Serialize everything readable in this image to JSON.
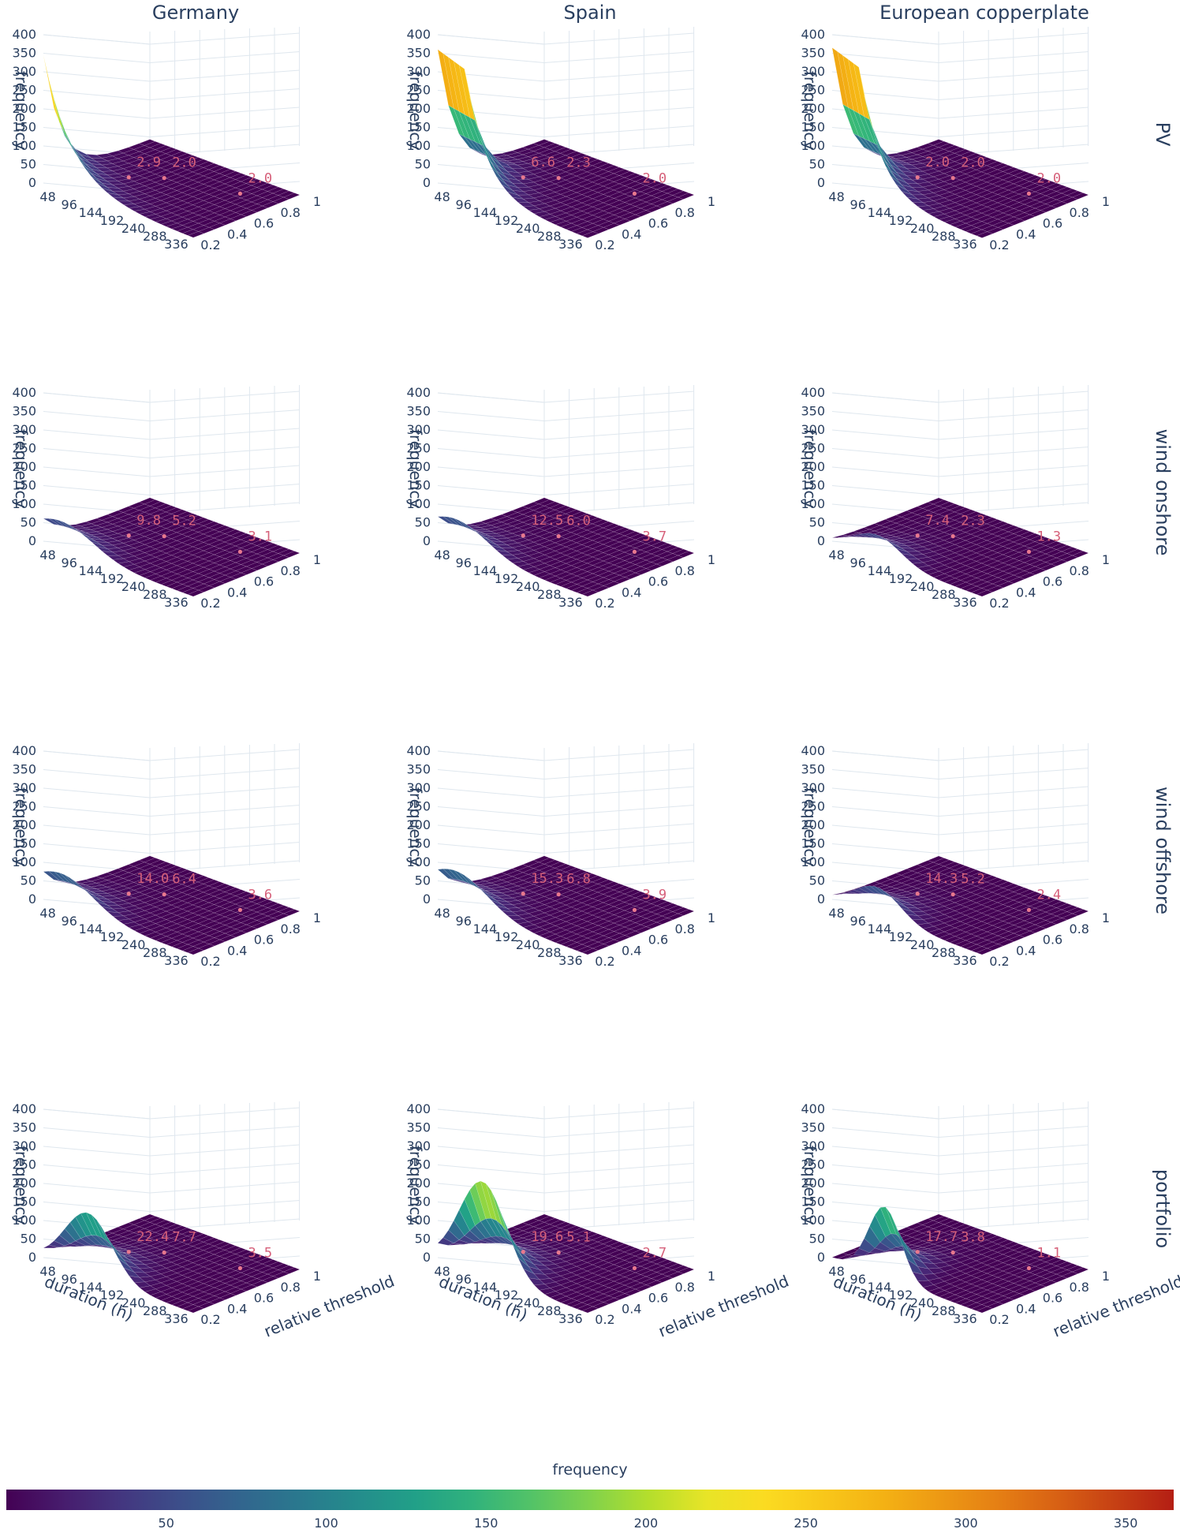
{
  "chart_data": {
    "type": "surface",
    "columns": [
      "Germany",
      "Spain",
      "European copperplate"
    ],
    "rows": [
      "PV",
      "wind onshore",
      "wind offshore",
      "portfolio"
    ],
    "x_axis": {
      "label": "duration (h)",
      "ticks": [
        48,
        96,
        144,
        192,
        240,
        288,
        336
      ]
    },
    "y_axis": {
      "label": "relative threshold",
      "ticks": [
        0.2,
        0.4,
        0.6,
        0.8,
        1
      ]
    },
    "z_axis": {
      "label": "frequency",
      "ticks": [
        0,
        50,
        100,
        150,
        200,
        250,
        300,
        350,
        400
      ],
      "range": [
        0,
        400
      ]
    },
    "colorbar": {
      "title": "frequency",
      "ticks": [
        50,
        100,
        150,
        200,
        250,
        300,
        350
      ],
      "range": [
        0,
        365
      ],
      "colorscale": "Viridis"
    },
    "panels": [
      {
        "row": "PV",
        "column": "Germany",
        "peak": 345,
        "shape": "monotone",
        "annotations": [
          "2.9",
          "2.0",
          "2.0"
        ]
      },
      {
        "row": "PV",
        "column": "Spain",
        "peak": 360,
        "shape": "plateau",
        "annotations": [
          "6.6",
          "2.3",
          "2.0"
        ]
      },
      {
        "row": "PV",
        "column": "European copperplate",
        "peak": 365,
        "shape": "plateau",
        "annotations": [
          "2.0",
          "2.0",
          "2.0"
        ]
      },
      {
        "row": "wind onshore",
        "column": "Germany",
        "peak": 72,
        "shape": "broad",
        "annotations": [
          "9.8",
          "5.2",
          "3.1"
        ]
      },
      {
        "row": "wind onshore",
        "column": "Spain",
        "peak": 78,
        "shape": "broad",
        "annotations": [
          "12.5",
          "6.0",
          "3.7"
        ]
      },
      {
        "row": "wind onshore",
        "column": "European copperplate",
        "peak": 62,
        "shape": "bump",
        "annotations": [
          "7.4",
          "2.3",
          "1.3"
        ]
      },
      {
        "row": "wind offshore",
        "column": "Germany",
        "peak": 88,
        "shape": "broad",
        "annotations": [
          "14.0",
          "6.4",
          "3.6"
        ]
      },
      {
        "row": "wind offshore",
        "column": "Spain",
        "peak": 95,
        "shape": "broad",
        "annotations": [
          "15.3",
          "6.8",
          "3.9"
        ]
      },
      {
        "row": "wind offshore",
        "column": "European copperplate",
        "peak": 78,
        "shape": "bump",
        "annotations": [
          "14.3",
          "5.2",
          "2.4"
        ]
      },
      {
        "row": "portfolio",
        "column": "Germany",
        "peak": 165,
        "shape": "bump",
        "annotations": [
          "22.4",
          "7.7",
          "3.5"
        ]
      },
      {
        "row": "portfolio",
        "column": "Spain",
        "peak": 250,
        "shape": "bump",
        "annotations": [
          "19.6",
          "5.1",
          "2.7"
        ]
      },
      {
        "row": "portfolio",
        "column": "European copperplate",
        "peak": 190,
        "shape": "narrow",
        "annotations": [
          "17.7",
          "3.8",
          "1.1"
        ]
      }
    ]
  }
}
